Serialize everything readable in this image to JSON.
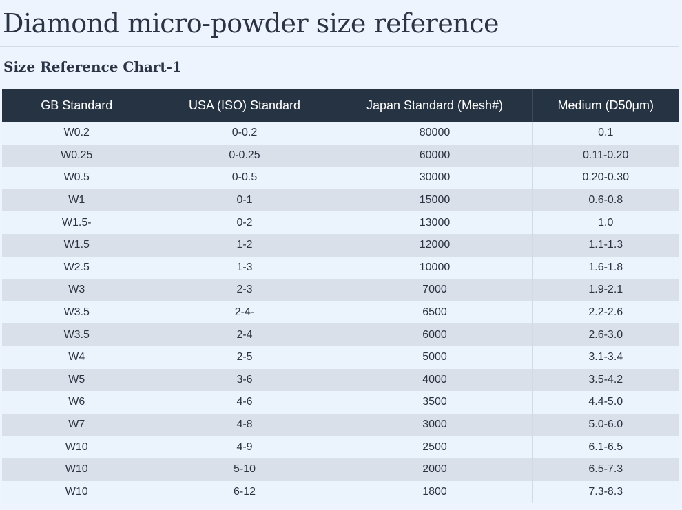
{
  "page": {
    "title": "Diamond micro-powder size reference",
    "subtitle": "Size Reference Chart-1"
  },
  "table": {
    "headers": [
      "GB Standard",
      "USA (ISO) Standard",
      "Japan Standard (Mesh#)",
      "Medium (D50μm)"
    ],
    "rows": [
      [
        "W0.2",
        "0-0.2",
        "80000",
        "0.1"
      ],
      [
        "W0.25",
        "0-0.25",
        "60000",
        "0.11-0.20"
      ],
      [
        "W0.5",
        "0-0.5",
        "30000",
        "0.20-0.30"
      ],
      [
        "W1",
        "0-1",
        "15000",
        "0.6-0.8"
      ],
      [
        "W1.5-",
        "0-2",
        "13000",
        "1.0"
      ],
      [
        "W1.5",
        "1-2",
        "12000",
        "1.1-1.3"
      ],
      [
        "W2.5",
        "1-3",
        "10000",
        "1.6-1.8"
      ],
      [
        "W3",
        "2-3",
        "7000",
        "1.9-2.1"
      ],
      [
        "W3.5",
        "2-4-",
        "6500",
        "2.2-2.6"
      ],
      [
        "W3.5",
        "2-4",
        "6000",
        "2.6-3.0"
      ],
      [
        "W4",
        "2-5",
        "5000",
        "3.1-3.4"
      ],
      [
        "W5",
        "3-6",
        "4000",
        "3.5-4.2"
      ],
      [
        "W6",
        "4-6",
        "3500",
        "4.4-5.0"
      ],
      [
        "W7",
        "4-8",
        "3000",
        "5.0-6.0"
      ],
      [
        "W10",
        "4-9",
        "2500",
        "6.1-6.5"
      ],
      [
        "W10",
        "5-10",
        "2000",
        "6.5-7.3"
      ],
      [
        "W10",
        "6-12",
        "1800",
        "7.3-8.3"
      ]
    ]
  },
  "colors": {
    "background": "#edf4fd",
    "header_bg": "#263343",
    "row_light": "#ebf4fd",
    "row_dark": "#d9e0ea"
  }
}
